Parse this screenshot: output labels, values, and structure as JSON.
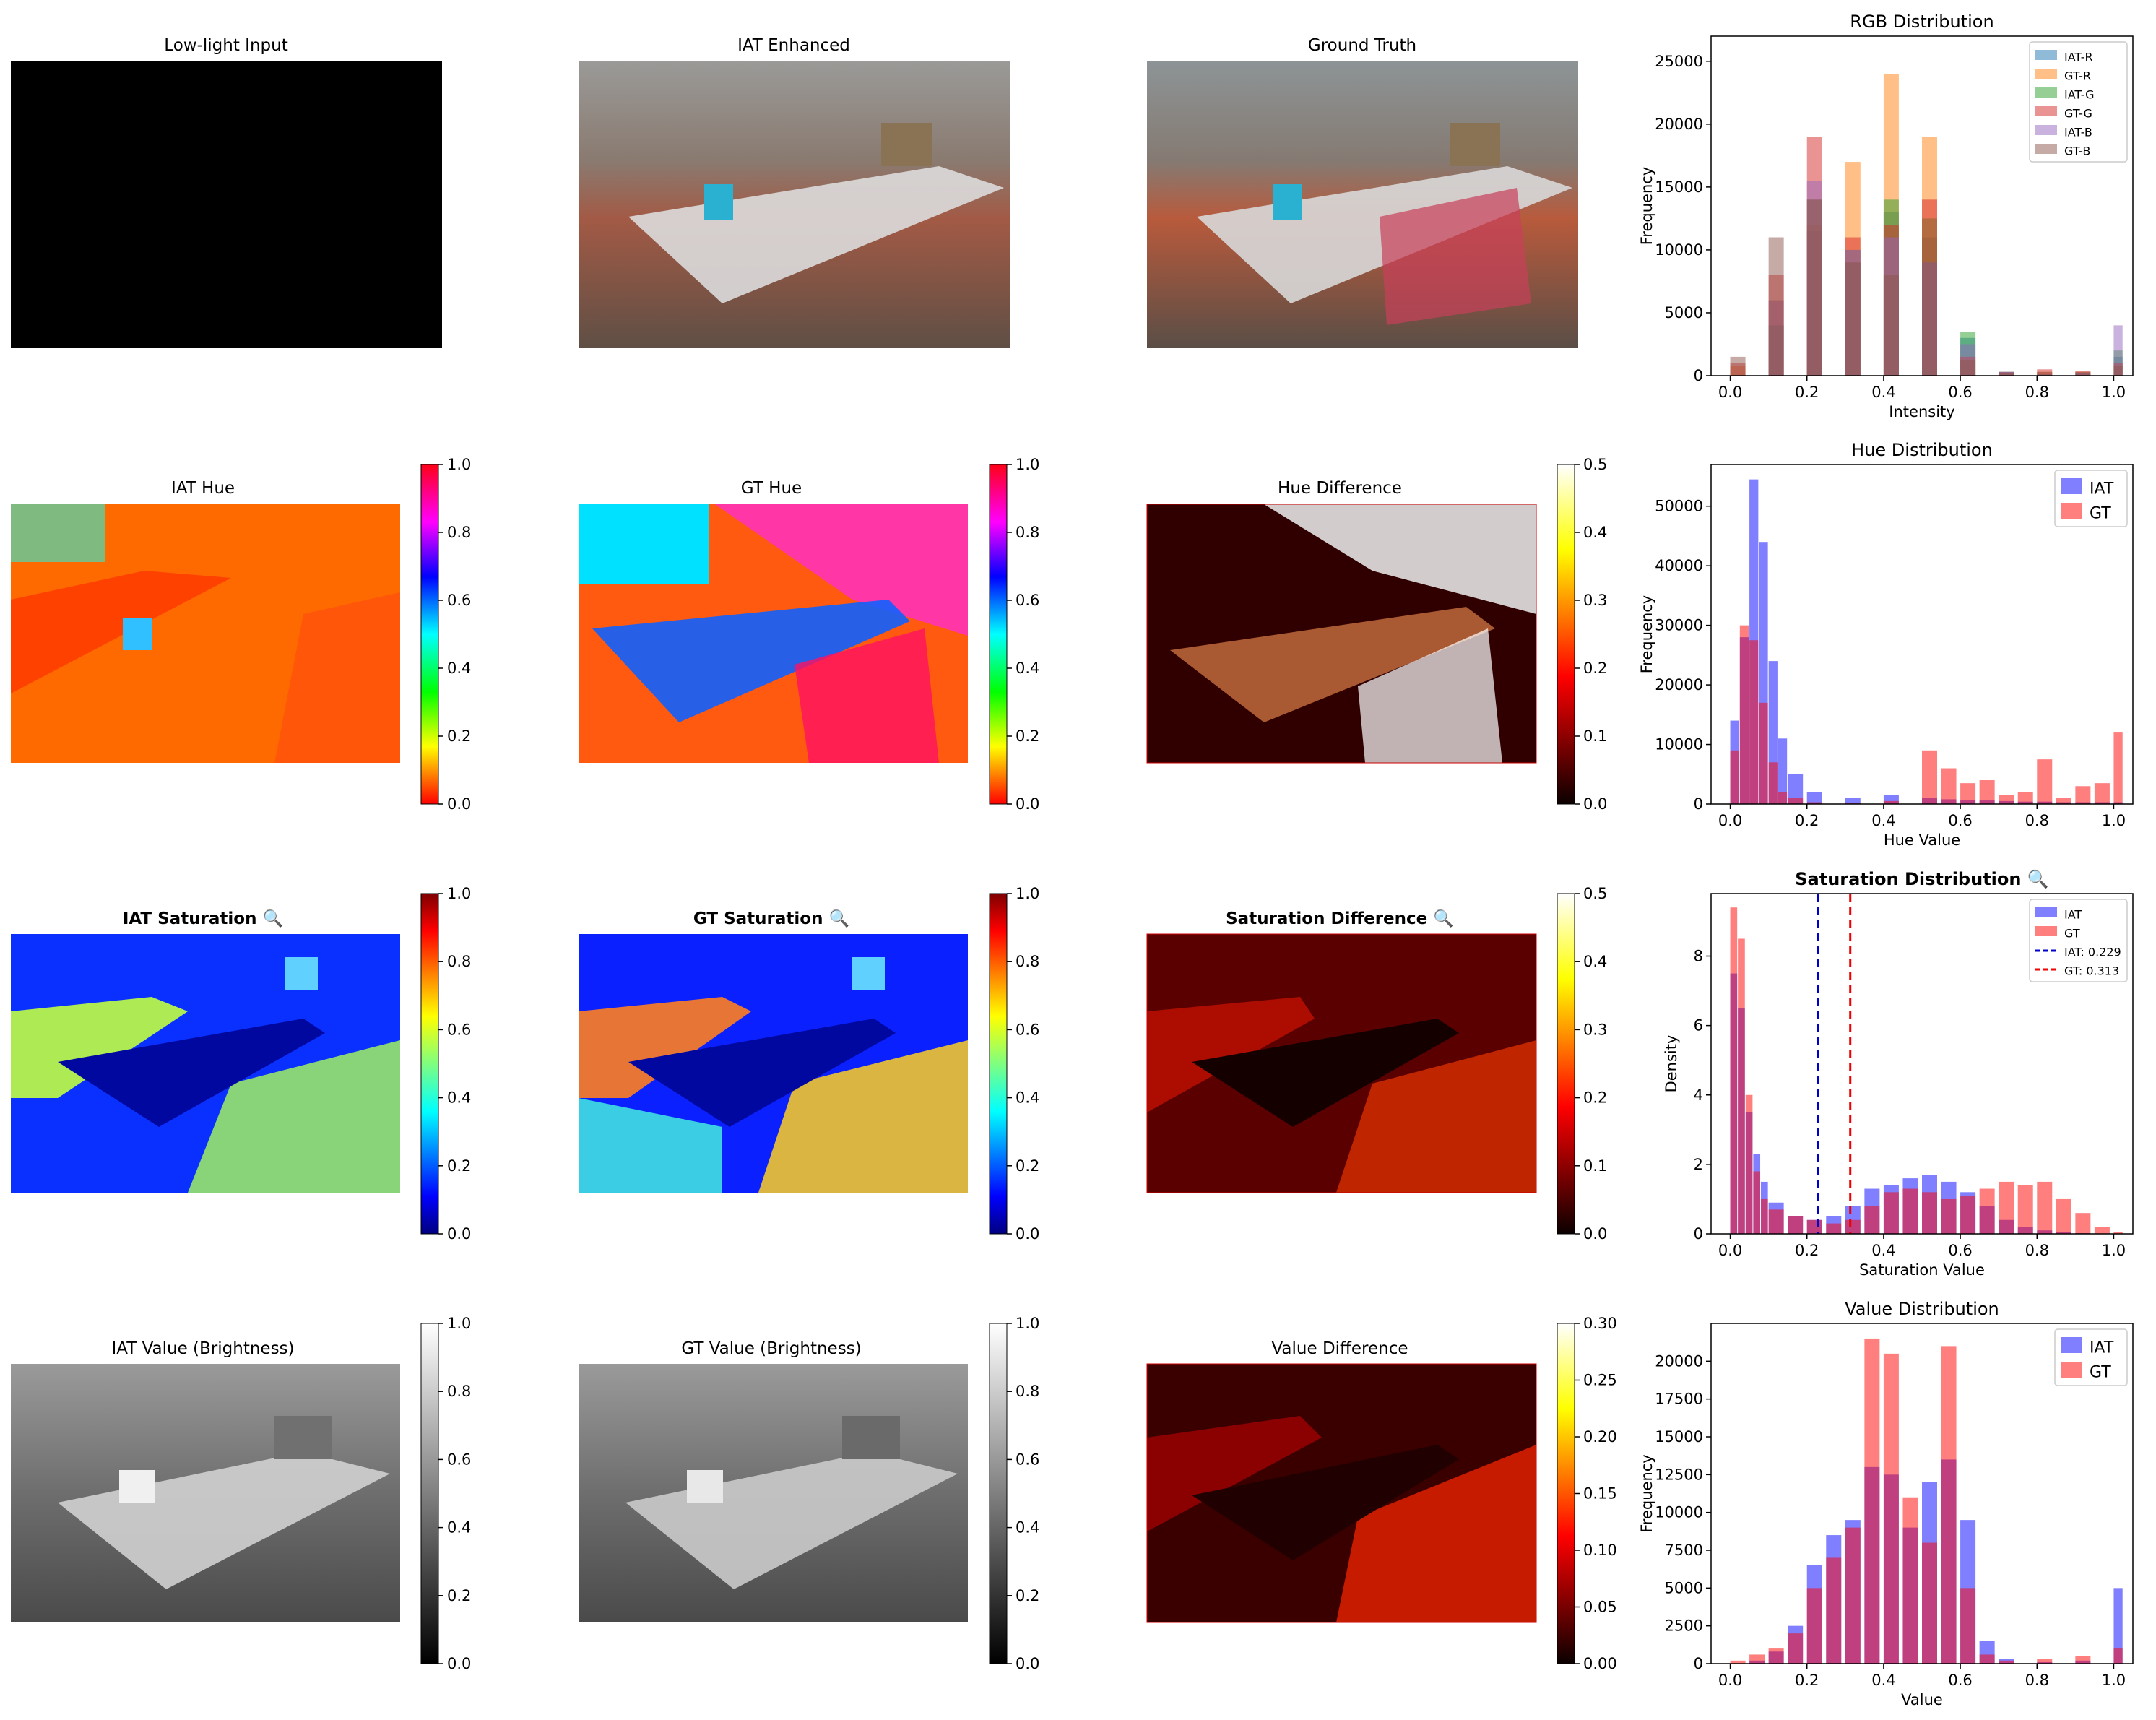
{
  "panels": {
    "input_title": "Low-light Input",
    "iat_title": "IAT Enhanced",
    "gt_title": "Ground Truth",
    "iat_hue_title": "IAT Hue",
    "gt_hue_title": "GT Hue",
    "hue_diff_title": "Hue Difference",
    "iat_sat_title": "IAT Saturation 🔍",
    "gt_sat_title": "GT Saturation 🔍",
    "sat_diff_title": "Saturation Difference 🔍",
    "iat_val_title": "IAT Value (Brightness)",
    "gt_val_title": "GT Value (Brightness)",
    "val_diff_title": "Value Difference"
  },
  "colorbars": {
    "hue": {
      "cmap": "hsv",
      "ticks": [
        "0.0",
        "0.2",
        "0.4",
        "0.6",
        "0.8",
        "1.0"
      ]
    },
    "hue_diff": {
      "cmap": "hot",
      "ticks": [
        "0.0",
        "0.1",
        "0.2",
        "0.3",
        "0.4",
        "0.5"
      ]
    },
    "sat": {
      "cmap": "jet",
      "ticks": [
        "0.0",
        "0.2",
        "0.4",
        "0.6",
        "0.8",
        "1.0"
      ]
    },
    "sat_diff": {
      "cmap": "hot",
      "ticks": [
        "0.0",
        "0.1",
        "0.2",
        "0.3",
        "0.4",
        "0.5"
      ]
    },
    "val": {
      "cmap": "gray",
      "ticks": [
        "0.0",
        "0.2",
        "0.4",
        "0.6",
        "0.8",
        "1.0"
      ]
    },
    "val_diff": {
      "cmap": "hot",
      "ticks": [
        "0.00",
        "0.05",
        "0.10",
        "0.15",
        "0.20",
        "0.25",
        "0.30"
      ]
    }
  },
  "chart_data": [
    {
      "type": "bar",
      "title": "RGB Distribution",
      "xlabel": "Intensity",
      "ylabel": "Frequency",
      "xlim": [
        -0.05,
        1.05
      ],
      "ylim": [
        0,
        27000
      ],
      "xticks": [
        "0.0",
        "0.2",
        "0.4",
        "0.6",
        "0.8",
        "1.0"
      ],
      "yticks": [
        "0",
        "5000",
        "10000",
        "15000",
        "20000",
        "25000"
      ],
      "legend": "top-right",
      "x": [
        0.0,
        0.1,
        0.2,
        0.3,
        0.4,
        0.5,
        0.6,
        0.7,
        0.8,
        0.9,
        1.0
      ],
      "series": [
        {
          "name": "IAT-R",
          "color": "#1f77b4",
          "values": [
            0,
            4000,
            11500,
            9000,
            13000,
            11000,
            3000,
            300,
            100,
            200,
            1500
          ]
        },
        {
          "name": "GT-R",
          "color": "#ff7f0e",
          "values": [
            800,
            6000,
            12000,
            17000,
            24000,
            19000,
            1500,
            200,
            300,
            300,
            1000
          ]
        },
        {
          "name": "IAT-G",
          "color": "#2ca02c",
          "values": [
            0,
            4000,
            14000,
            10000,
            14000,
            12500,
            3500,
            300,
            100,
            200,
            2000
          ]
        },
        {
          "name": "GT-G",
          "color": "#d62728",
          "values": [
            1000,
            8000,
            19000,
            11000,
            12000,
            14000,
            1500,
            300,
            500,
            400,
            1000
          ]
        },
        {
          "name": "IAT-B",
          "color": "#9467bd",
          "values": [
            0,
            6000,
            15500,
            10000,
            11000,
            9000,
            2500,
            300,
            100,
            200,
            4000
          ]
        },
        {
          "name": "GT-B",
          "color": "#8c564b",
          "values": [
            1500,
            11000,
            14000,
            9000,
            8000,
            9000,
            1200,
            200,
            300,
            300,
            800
          ]
        }
      ]
    },
    {
      "type": "bar",
      "title": "Hue Distribution",
      "xlabel": "Hue Value",
      "ylabel": "Frequency",
      "xlim": [
        -0.05,
        1.05
      ],
      "ylim": [
        0,
        57000
      ],
      "xticks": [
        "0.0",
        "0.2",
        "0.4",
        "0.6",
        "0.8",
        "1.0"
      ],
      "yticks": [
        "0",
        "10000",
        "20000",
        "30000",
        "40000",
        "50000"
      ],
      "legend": "top-right",
      "x": [
        0.0,
        0.025,
        0.05,
        0.075,
        0.1,
        0.125,
        0.15,
        0.2,
        0.3,
        0.4,
        0.5,
        0.55,
        0.6,
        0.65,
        0.7,
        0.75,
        0.8,
        0.85,
        0.9,
        0.95,
        1.0
      ],
      "series": [
        {
          "name": "IAT",
          "color": "#0000ff",
          "values": [
            14000,
            28000,
            54500,
            44000,
            24000,
            11000,
            5000,
            2000,
            1000,
            1500,
            1000,
            800,
            700,
            600,
            500,
            400,
            400,
            300,
            300,
            300,
            300
          ]
        },
        {
          "name": "GT",
          "color": "#ff0000",
          "values": [
            9000,
            30000,
            27500,
            17000,
            7000,
            2000,
            1000,
            300,
            200,
            500,
            9000,
            6000,
            3500,
            4000,
            1500,
            2000,
            7500,
            1000,
            3000,
            3500,
            12000
          ]
        }
      ]
    },
    {
      "type": "bar",
      "title": "Saturation Distribution 🔍",
      "xlabel": "Saturation Value",
      "ylabel": "Density",
      "xlim": [
        -0.05,
        1.05
      ],
      "ylim": [
        0,
        9.8
      ],
      "xticks": [
        "0.0",
        "0.2",
        "0.4",
        "0.6",
        "0.8",
        "1.0"
      ],
      "yticks": [
        "0",
        "2",
        "4",
        "6",
        "8"
      ],
      "legend": "top-right",
      "x": [
        0.0,
        0.02,
        0.04,
        0.06,
        0.08,
        0.1,
        0.15,
        0.2,
        0.25,
        0.3,
        0.35,
        0.4,
        0.45,
        0.5,
        0.55,
        0.6,
        0.65,
        0.7,
        0.75,
        0.8,
        0.85,
        0.9,
        0.95,
        1.0
      ],
      "series": [
        {
          "name": "IAT",
          "color": "#0000ff",
          "values": [
            7.5,
            6.5,
            3.5,
            2.3,
            1.5,
            0.9,
            0.5,
            0.4,
            0.5,
            0.8,
            1.3,
            1.4,
            1.6,
            1.7,
            1.5,
            1.2,
            0.8,
            0.4,
            0.2,
            0.1,
            0.05,
            0.02,
            0.01,
            0.0
          ]
        },
        {
          "name": "GT",
          "color": "#ff0000",
          "values": [
            9.4,
            8.5,
            4.0,
            1.8,
            1.0,
            0.7,
            0.5,
            0.4,
            0.3,
            0.4,
            0.8,
            1.2,
            1.3,
            1.2,
            1.0,
            1.1,
            1.3,
            1.5,
            1.4,
            1.5,
            1.0,
            0.6,
            0.2,
            0.05
          ]
        }
      ],
      "vlines": [
        {
          "name": "IAT: 0.229",
          "x": 0.229,
          "color": "#0000cc"
        },
        {
          "name": "GT: 0.313",
          "x": 0.313,
          "color": "#ee0000"
        }
      ]
    },
    {
      "type": "bar",
      "title": "Value Distribution",
      "xlabel": "Value",
      "ylabel": "Frequency",
      "xlim": [
        -0.05,
        1.05
      ],
      "ylim": [
        0,
        22500
      ],
      "xticks": [
        "0.0",
        "0.2",
        "0.4",
        "0.6",
        "0.8",
        "1.0"
      ],
      "yticks": [
        "0",
        "2500",
        "5000",
        "7500",
        "10000",
        "12500",
        "15000",
        "17500",
        "20000"
      ],
      "legend": "top-right",
      "x": [
        0.0,
        0.05,
        0.1,
        0.15,
        0.2,
        0.25,
        0.3,
        0.35,
        0.4,
        0.45,
        0.5,
        0.55,
        0.6,
        0.65,
        0.7,
        0.8,
        0.9,
        1.0
      ],
      "series": [
        {
          "name": "IAT",
          "color": "#0000ff",
          "values": [
            0,
            200,
            800,
            2500,
            6500,
            8500,
            9500,
            13000,
            12500,
            9000,
            12000,
            13500,
            9500,
            1500,
            300,
            100,
            200,
            5000
          ]
        },
        {
          "name": "GT",
          "color": "#ff0000",
          "values": [
            200,
            600,
            1000,
            2000,
            5000,
            7000,
            9000,
            21500,
            20500,
            11000,
            8000,
            21000,
            5000,
            600,
            200,
            300,
            500,
            1000
          ]
        }
      ]
    }
  ]
}
